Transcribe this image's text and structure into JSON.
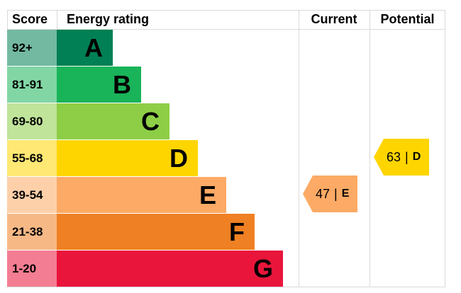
{
  "headers": {
    "score": "Score",
    "rating": "Energy rating",
    "current": "Current",
    "potential": "Potential"
  },
  "chart_data": {
    "type": "bar",
    "bands": [
      {
        "score": "92+",
        "letter": "A",
        "color": "#008054"
      },
      {
        "score": "81-91",
        "letter": "B",
        "color": "#19b459"
      },
      {
        "score": "69-80",
        "letter": "C",
        "color": "#8dce46"
      },
      {
        "score": "55-68",
        "letter": "D",
        "color": "#ffd500"
      },
      {
        "score": "39-54",
        "letter": "E",
        "color": "#fcaa65"
      },
      {
        "score": "21-38",
        "letter": "F",
        "color": "#ef8023"
      },
      {
        "score": "1-20",
        "letter": "G",
        "color": "#e9153b"
      }
    ],
    "current": {
      "value": 47,
      "letter": "E",
      "separator": "|",
      "color": "#fcaa65"
    },
    "potential": {
      "value": 63,
      "letter": "D",
      "separator": "|",
      "color": "#ffd500"
    }
  }
}
